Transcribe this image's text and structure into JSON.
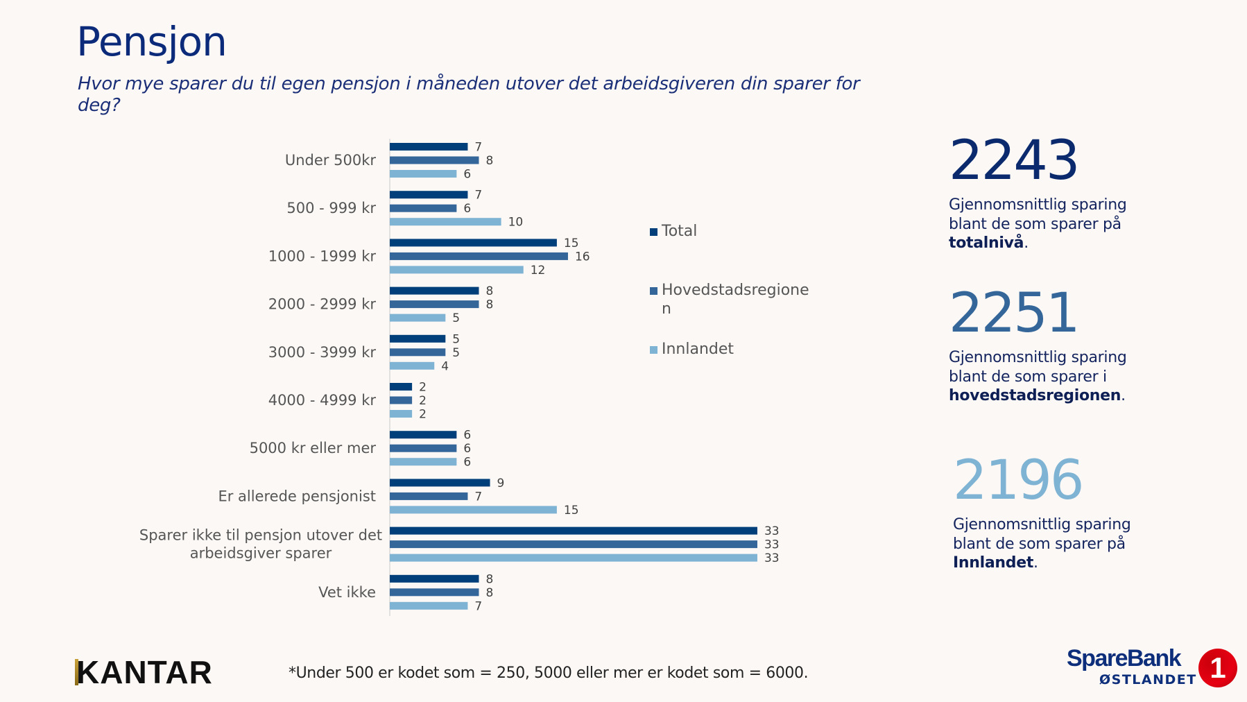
{
  "header": {
    "title": "Pensjon",
    "subtitle": "Hvor mye sparer du til egen pensjon i måneden utover det arbeidsgiveren din sparer for deg?"
  },
  "colors": {
    "total": "#003f7a",
    "hovedstad": "#356699",
    "innlandet": "#7fb3d4",
    "navy": "#0b2a7a",
    "background": "#fcf8f5"
  },
  "chart_data": {
    "type": "bar",
    "orientation": "horizontal",
    "title": "Hvor mye sparer du til egen pensjon i måneden utover det arbeidsgiveren din sparer for deg?",
    "xlabel": "",
    "ylabel": "",
    "unit": "%",
    "xlim": [
      0,
      35
    ],
    "grid": false,
    "legend_position": "right",
    "categories": [
      "Under 500kr",
      "500 - 999 kr",
      "1000 - 1999 kr",
      "2000 - 2999 kr",
      "3000 - 3999 kr",
      "4000 - 4999 kr",
      "5000 kr eller mer",
      "Er allerede pensjonist",
      "Sparer ikke til pensjon utover det arbeidsgiver sparer",
      "Vet ikke"
    ],
    "category_lines": [
      [
        "Under 500kr"
      ],
      [
        "500 - 999 kr"
      ],
      [
        "1000 - 1999 kr"
      ],
      [
        "2000 - 2999 kr"
      ],
      [
        "3000 - 3999 kr"
      ],
      [
        "4000 - 4999 kr"
      ],
      [
        "5000 kr eller mer"
      ],
      [
        "Er allerede pensjonist"
      ],
      [
        "Sparer ikke til pensjon utover det",
        "arbeidsgiver sparer"
      ],
      [
        "Vet ikke"
      ]
    ],
    "series": [
      {
        "name": "Total",
        "color": "#003f7a",
        "values": [
          7,
          7,
          15,
          8,
          5,
          2,
          6,
          9,
          33,
          8
        ]
      },
      {
        "name": "Hovedstadsregionen",
        "color": "#356699",
        "values": [
          8,
          6,
          16,
          8,
          5,
          2,
          6,
          7,
          33,
          8
        ]
      },
      {
        "name": "Innlandet",
        "color": "#7fb3d4",
        "values": [
          6,
          10,
          12,
          5,
          4,
          2,
          6,
          15,
          33,
          7
        ]
      }
    ]
  },
  "legend": {
    "items": [
      {
        "label": "Total"
      },
      {
        "label": "Hovedstadsregionen"
      },
      {
        "label": "Innlandet"
      }
    ]
  },
  "stats": [
    {
      "value": "2243",
      "line1": "Gjennomsnittlig sparing",
      "line2": "blant de som sparer på",
      "emphasis": "totalnivå",
      "suffix": "."
    },
    {
      "value": "2251",
      "line1": "Gjennomsnittlig sparing",
      "line2": "blant de som sparer i",
      "emphasis": "hovedstadsregionen",
      "suffix": "."
    },
    {
      "value": "2196",
      "line1": "Gjennomsnittlig sparing",
      "line2": "blant de som sparer på",
      "emphasis": "Innlandet",
      "suffix": "."
    }
  ],
  "footer": {
    "kantar_logo": "KANTAR",
    "footnote": "*Under 500 er kodet som = 250, 5000 eller mer er kodet som = 6000.",
    "bank_logo_name": "SpareBank",
    "bank_logo_region": "ØSTLANDET",
    "bank_logo_mark": "1"
  }
}
